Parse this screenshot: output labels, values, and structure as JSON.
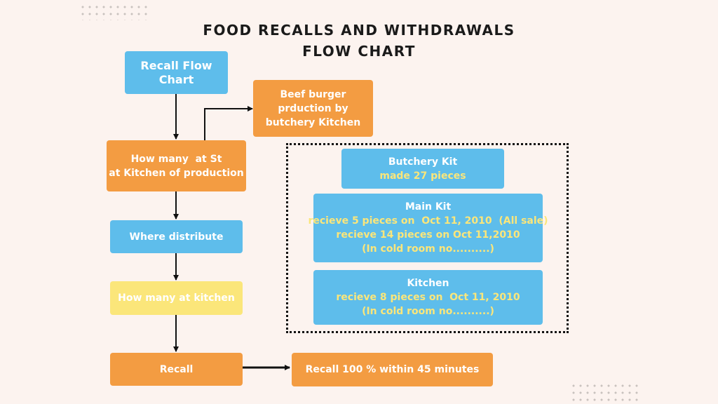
{
  "title": {
    "line1": "FOOD RECALLS AND WITHDRAWALS",
    "line2": "FLOW CHART"
  },
  "flow": {
    "recall_flow_chart": [
      "Recall Flow",
      "Chart"
    ],
    "beef_burger": [
      "Beef burger",
      "prduction by",
      "butchery Kitchen"
    ],
    "how_many_st": [
      "How many  at St",
      "at Kitchen of production"
    ],
    "where_distribute": "Where distribute",
    "how_many_kitchen": "How many at kitchen",
    "recall": "Recall",
    "recall_result": "Recall 100 % within 45 minutes"
  },
  "distribution": {
    "butchery_kit": {
      "title": "Butchery Kit",
      "lines": [
        "made 27 pieces"
      ]
    },
    "main_kit": {
      "title": "Main Kit",
      "lines": [
        "recieve 5 pieces on  Oct 11, 2010  (All sale)",
        "recieve 14 pieces on Oct 11,2010",
        "(In cold room no..........)"
      ]
    },
    "kitchen": {
      "title": "Kitchen",
      "lines": [
        "recieve 8 pieces on  Oct 11, 2010",
        "(In cold room no..........)"
      ]
    }
  },
  "colors": {
    "blue": "#5ebdeb",
    "orange": "#f39c42",
    "yellow": "#fbe67a",
    "background": "#fcf3ef"
  }
}
